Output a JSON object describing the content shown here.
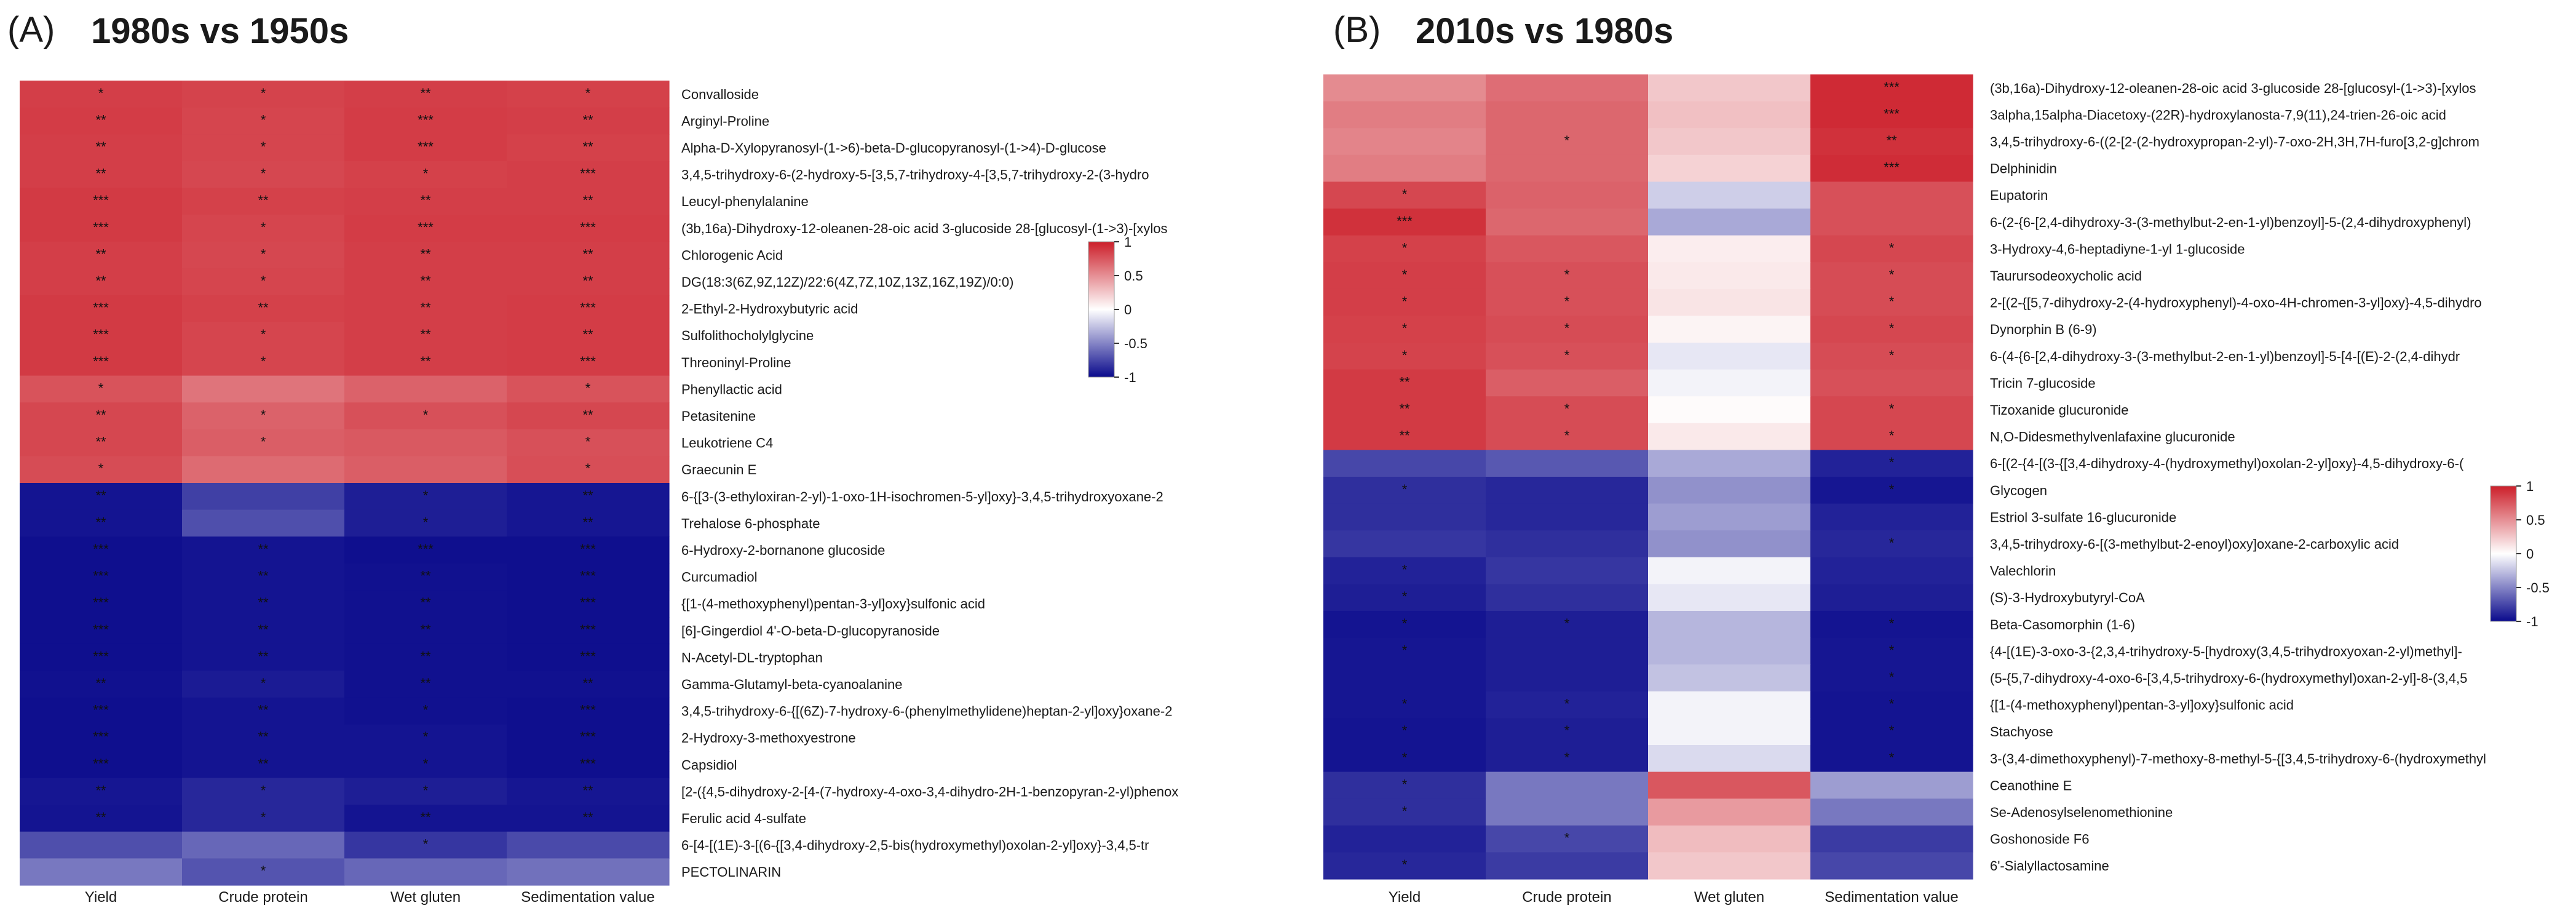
{
  "colors": {
    "high": "#cc1f2a",
    "mid": "#ffffff",
    "low": "#0a0a8c",
    "text": "#1a1a1a"
  },
  "colorbar": {
    "ticks": [
      "1",
      "0.5",
      "0",
      "-0.5",
      "-1"
    ],
    "tick_values": [
      1,
      0.5,
      0,
      -0.5,
      -1
    ],
    "range": [
      -1,
      1
    ]
  },
  "chart_data": [
    {
      "type": "heatmap",
      "panel": "(A)",
      "title": "1980s vs 1950s",
      "columns": [
        "Yield",
        "Crude protein",
        "Wet gluten",
        "Sedimentation value"
      ],
      "rows": [
        "Convalloside",
        "Arginyl-Proline",
        "Alpha-D-Xylopyranosyl-(1->6)-beta-D-glucopyranosyl-(1->4)-D-glucose",
        "3,4,5-trihydroxy-6-(2-hydroxy-5-[3,5,7-trihydroxy-4-[3,5,7-trihydroxy-2-(3-hydro",
        "Leucyl-phenylalanine",
        "(3b,16a)-Dihydroxy-12-oleanen-28-oic acid 3-glucoside 28-[glucosyl-(1->3)-[xylos",
        "Chlorogenic Acid",
        "DG(18:3(6Z,9Z,12Z)/22:6(4Z,7Z,10Z,13Z,16Z,19Z)/0:0)",
        "2-Ethyl-2-Hydroxybutyric acid",
        "Sulfolithocholylglycine",
        "Threoninyl-Proline",
        "Phenyllactic acid",
        "Petasitenine",
        "Leukotriene C4",
        "Graecunin E",
        "6-{[3-(3-ethyloxiran-2-yl)-1-oxo-1H-isochromen-5-yl]oxy}-3,4,5-trihydroxyoxane-2",
        "Trehalose 6-phosphate",
        "6-Hydroxy-2-bornanone glucoside",
        "Curcumadiol",
        "{[1-(4-methoxyphenyl)pentan-3-yl]oxy}sulfonic acid",
        "[6]-Gingerdiol 4'-O-beta-D-glucopyranoside",
        "N-Acetyl-DL-tryptophan",
        "Gamma-Glutamyl-beta-cyanoalanine",
        "3,4,5-trihydroxy-6-{[(6Z)-7-hydroxy-6-(phenylmethylidene)heptan-2-yl]oxy}oxane-2",
        "2-Hydroxy-3-methoxyestrone",
        "Capsidiol",
        "[2-({4,5-dihydroxy-2-[4-(7-hydroxy-4-oxo-3,4-dihydro-2H-1-benzopyran-2-yl)phenox",
        "Ferulic acid 4-sulfate",
        "6-[4-[(1E)-3-[(6-{[3,4-dihydroxy-2,5-bis(hydroxymethyl)oxolan-2-yl]oxy}-3,4,5-tr",
        "PECTOLINARIN"
      ],
      "values": [
        [
          0.86,
          0.84,
          0.86,
          0.85
        ],
        [
          0.87,
          0.83,
          0.87,
          0.86
        ],
        [
          0.86,
          0.83,
          0.87,
          0.85
        ],
        [
          0.86,
          0.82,
          0.85,
          0.86
        ],
        [
          0.88,
          0.85,
          0.86,
          0.86
        ],
        [
          0.88,
          0.83,
          0.87,
          0.87
        ],
        [
          0.86,
          0.82,
          0.86,
          0.86
        ],
        [
          0.86,
          0.83,
          0.86,
          0.86
        ],
        [
          0.88,
          0.85,
          0.86,
          0.87
        ],
        [
          0.88,
          0.83,
          0.86,
          0.87
        ],
        [
          0.88,
          0.83,
          0.86,
          0.87
        ],
        [
          0.77,
          0.62,
          0.7,
          0.77
        ],
        [
          0.82,
          0.7,
          0.78,
          0.82
        ],
        [
          0.82,
          0.72,
          0.74,
          0.78
        ],
        [
          0.8,
          0.66,
          0.72,
          0.79
        ],
        [
          -0.96,
          -0.78,
          -0.92,
          -0.95
        ],
        [
          -0.96,
          -0.72,
          -0.92,
          -0.95
        ],
        [
          -0.98,
          -0.96,
          -0.98,
          -0.98
        ],
        [
          -0.98,
          -0.96,
          -0.97,
          -0.98
        ],
        [
          -0.98,
          -0.96,
          -0.97,
          -0.98
        ],
        [
          -0.98,
          -0.96,
          -0.97,
          -0.98
        ],
        [
          -0.98,
          -0.96,
          -0.97,
          -0.98
        ],
        [
          -0.97,
          -0.93,
          -0.97,
          -0.97
        ],
        [
          -0.98,
          -0.96,
          -0.97,
          -0.98
        ],
        [
          -0.98,
          -0.96,
          -0.96,
          -0.98
        ],
        [
          -0.98,
          -0.96,
          -0.96,
          -0.98
        ],
        [
          -0.95,
          -0.88,
          -0.92,
          -0.95
        ],
        [
          -0.96,
          -0.88,
          -0.96,
          -0.96
        ],
        [
          -0.72,
          -0.62,
          -0.82,
          -0.74
        ],
        [
          -0.55,
          -0.7,
          -0.62,
          -0.58
        ]
      ],
      "stars": [
        [
          "*",
          "*",
          "**",
          "*"
        ],
        [
          "**",
          "*",
          "***",
          "**"
        ],
        [
          "**",
          "*",
          "***",
          "**"
        ],
        [
          "**",
          "*",
          "*",
          "***"
        ],
        [
          "***",
          "**",
          "**",
          "**"
        ],
        [
          "***",
          "*",
          "***",
          "***"
        ],
        [
          "**",
          "*",
          "**",
          "**"
        ],
        [
          "**",
          "*",
          "**",
          "**"
        ],
        [
          "***",
          "**",
          "**",
          "***"
        ],
        [
          "***",
          "*",
          "**",
          "**"
        ],
        [
          "***",
          "*",
          "**",
          "***"
        ],
        [
          "*",
          "",
          "",
          "*"
        ],
        [
          "**",
          "*",
          "*",
          "**"
        ],
        [
          "**",
          "*",
          "",
          "*"
        ],
        [
          "*",
          "",
          "",
          "*"
        ],
        [
          "**",
          "",
          "*",
          "**"
        ],
        [
          "**",
          "",
          "*",
          "**"
        ],
        [
          "***",
          "**",
          "***",
          "***"
        ],
        [
          "***",
          "**",
          "**",
          "***"
        ],
        [
          "***",
          "**",
          "**",
          "***"
        ],
        [
          "***",
          "**",
          "**",
          "***"
        ],
        [
          "***",
          "**",
          "**",
          "***"
        ],
        [
          "**",
          "*",
          "**",
          "**"
        ],
        [
          "***",
          "**",
          "*",
          "***"
        ],
        [
          "***",
          "**",
          "*",
          "***"
        ],
        [
          "***",
          "**",
          "*",
          "***"
        ],
        [
          "**",
          "*",
          "*",
          "**"
        ],
        [
          "**",
          "*",
          "**",
          "**"
        ],
        [
          "",
          "",
          "*",
          ""
        ],
        [
          "",
          "*",
          "",
          ""
        ]
      ],
      "legend": {
        "min": -1,
        "max": 1
      }
    },
    {
      "type": "heatmap",
      "panel": "(B)",
      "title": "2010s vs 1980s",
      "columns": [
        "Yield",
        "Crude protein",
        "Wet gluten",
        "Sedimentation value"
      ],
      "rows": [
        "(3b,16a)-Dihydroxy-12-oleanen-28-oic acid 3-glucoside 28-[glucosyl-(1->3)-[xylos",
        "3alpha,15alpha-Diacetoxy-(22R)-hydroxylanosta-7,9(11),24-trien-26-oic acid",
        "3,4,5-trihydroxy-6-((2-[2-(2-hydroxypropan-2-yl)-7-oxo-2H,3H,7H-furo[3,2-g]chrom",
        "Delphinidin",
        "Eupatorin",
        "6-(2-{6-[2,4-dihydroxy-3-(3-methylbut-2-en-1-yl)benzoyl]-5-(2,4-dihydroxyphenyl)",
        "3-Hydroxy-4,6-heptadiyne-1-yl 1-glucoside",
        "Taurursodeoxycholic acid",
        "2-[(2-{[5,7-dihydroxy-2-(4-hydroxyphenyl)-4-oxo-4H-chromen-3-yl]oxy}-4,5-dihydro",
        "Dynorphin B (6-9)",
        "6-(4-{6-[2,4-dihydroxy-3-(3-methylbut-2-en-1-yl)benzoyl]-5-[4-[(E)-2-(2,4-dihydr",
        "Tricin 7-glucoside",
        "Tizoxanide glucuronide",
        "N,O-Didesmethylvenlafaxine glucuronide",
        "6-[(2-{4-[(3-{[3,4-dihydroxy-4-(hydroxymethyl)oxolan-2-yl]oxy}-4,5-dihydroxy-6-(",
        "Glycogen",
        "Estriol 3-sulfate 16-glucuronide",
        "3,4,5-trihydroxy-6-[(3-methylbut-2-enoyl)oxy]oxane-2-carboxylic acid",
        "Valechlorin",
        "(S)-3-Hydroxybutyryl-CoA",
        "Beta-Casomorphin (1-6)",
        "{4-[(1E)-3-oxo-3-{2,3,4-trihydroxy-5-[hydroxy(3,4,5-trihydroxyoxan-2-yl)methyl]-",
        "(5-{5,7-dihydroxy-4-oxo-6-[3,4,5-trihydroxy-6-(hydroxymethyl)oxan-2-yl]-8-(3,4,5",
        "{[1-(4-methoxyphenyl)pentan-3-yl]oxy}sulfonic acid",
        "Stachyose",
        "3-(3,4-dimethoxyphenyl)-7-methoxy-8-methyl-5-{[3,4,5-trihydroxy-6-(hydroxymethyl",
        "Ceanothine E",
        "Se-Adenosylselenomethionine",
        "Goshonoside F6",
        "6'-Sialyllactosamine"
      ],
      "values": [
        [
          0.52,
          0.65,
          0.25,
          0.95
        ],
        [
          0.58,
          0.68,
          0.28,
          0.95
        ],
        [
          0.55,
          0.68,
          0.25,
          0.92
        ],
        [
          0.58,
          0.68,
          0.2,
          0.94
        ],
        [
          0.82,
          0.7,
          -0.2,
          0.78
        ],
        [
          0.92,
          0.68,
          -0.35,
          0.78
        ],
        [
          0.85,
          0.75,
          0.08,
          0.82
        ],
        [
          0.86,
          0.78,
          0.1,
          0.8
        ],
        [
          0.86,
          0.78,
          0.12,
          0.8
        ],
        [
          0.85,
          0.8,
          0.05,
          0.82
        ],
        [
          0.84,
          0.78,
          -0.1,
          0.8
        ],
        [
          0.88,
          0.72,
          -0.05,
          0.78
        ],
        [
          0.88,
          0.8,
          0.02,
          0.82
        ],
        [
          0.88,
          0.8,
          0.1,
          0.82
        ],
        [
          -0.75,
          -0.68,
          -0.35,
          -0.9
        ],
        [
          -0.85,
          -0.88,
          -0.45,
          -0.95
        ],
        [
          -0.85,
          -0.88,
          -0.4,
          -0.9
        ],
        [
          -0.82,
          -0.85,
          -0.45,
          -0.88
        ],
        [
          -0.9,
          -0.82,
          -0.05,
          -0.9
        ],
        [
          -0.92,
          -0.85,
          -0.1,
          -0.92
        ],
        [
          -0.96,
          -0.92,
          -0.3,
          -0.96
        ],
        [
          -0.95,
          -0.92,
          -0.3,
          -0.95
        ],
        [
          -0.95,
          -0.92,
          -0.25,
          -0.95
        ],
        [
          -0.95,
          -0.9,
          -0.05,
          -0.96
        ],
        [
          -0.96,
          -0.92,
          -0.05,
          -0.96
        ],
        [
          -0.96,
          -0.92,
          -0.15,
          -0.96
        ],
        [
          -0.85,
          -0.55,
          0.75,
          -0.4
        ],
        [
          -0.85,
          -0.55,
          0.45,
          -0.55
        ],
        [
          -0.9,
          -0.75,
          0.3,
          -0.8
        ],
        [
          -0.88,
          -0.8,
          0.25,
          -0.75
        ]
      ],
      "stars": [
        [
          "",
          "",
          "",
          "***"
        ],
        [
          "",
          "",
          "",
          "***"
        ],
        [
          "",
          "*",
          "",
          "**"
        ],
        [
          "",
          "",
          "",
          "***"
        ],
        [
          "*",
          "",
          "",
          ""
        ],
        [
          "***",
          "",
          "",
          ""
        ],
        [
          "*",
          "",
          "",
          "*"
        ],
        [
          "*",
          "*",
          "",
          "*"
        ],
        [
          "*",
          "*",
          "",
          "*"
        ],
        [
          "*",
          "*",
          "",
          "*"
        ],
        [
          "*",
          "*",
          "",
          "*"
        ],
        [
          "**",
          "",
          "",
          ""
        ],
        [
          "**",
          "*",
          "",
          "*"
        ],
        [
          "**",
          "*",
          "",
          "*"
        ],
        [
          "",
          "",
          "",
          "*"
        ],
        [
          "*",
          "",
          "",
          "*"
        ],
        [
          "",
          "",
          "",
          ""
        ],
        [
          "",
          "",
          "",
          "*"
        ],
        [
          "*",
          "",
          "",
          ""
        ],
        [
          "*",
          "",
          "",
          ""
        ],
        [
          "*",
          "*",
          "",
          "*"
        ],
        [
          "*",
          "",
          "",
          "*"
        ],
        [
          "",
          "",
          "",
          "*"
        ],
        [
          "*",
          "*",
          "",
          "*"
        ],
        [
          "*",
          "*",
          "",
          "*"
        ],
        [
          "*",
          "*",
          "",
          "*"
        ],
        [
          "*",
          "",
          "",
          ""
        ],
        [
          "*",
          "",
          "",
          ""
        ],
        [
          "",
          "*",
          "",
          ""
        ],
        [
          "*",
          "",
          "",
          ""
        ]
      ],
      "legend": {
        "min": -1,
        "max": 1
      }
    }
  ]
}
